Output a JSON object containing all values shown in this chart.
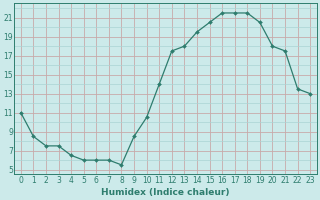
{
  "x": [
    0,
    1,
    2,
    3,
    4,
    5,
    6,
    7,
    8,
    9,
    10,
    11,
    12,
    13,
    14,
    15,
    16,
    17,
    18,
    19,
    20,
    21,
    22,
    23
  ],
  "y": [
    11,
    8.5,
    7.5,
    7.5,
    6.5,
    6,
    6,
    6,
    5.5,
    8.5,
    10.5,
    14,
    17.5,
    18,
    19.5,
    20.5,
    21.5,
    21.5,
    21.5,
    20.5,
    18,
    17.5,
    13.5,
    13
  ],
  "line_color": "#2e7d6e",
  "marker": "D",
  "marker_size": 2.0,
  "bg_color": "#cceaea",
  "grid_minor_color": "#aad4d4",
  "grid_major_color": "#c8aaaa",
  "xlabel": "Humidex (Indice chaleur)",
  "ylim": [
    4.5,
    22.5
  ],
  "xlim": [
    -0.5,
    23.5
  ],
  "yticks": [
    5,
    7,
    9,
    11,
    13,
    15,
    17,
    19,
    21
  ],
  "xticks": [
    0,
    1,
    2,
    3,
    4,
    5,
    6,
    7,
    8,
    9,
    10,
    11,
    12,
    13,
    14,
    15,
    16,
    17,
    18,
    19,
    20,
    21,
    22,
    23
  ],
  "xtick_labels": [
    "0",
    "1",
    "2",
    "3",
    "4",
    "5",
    "6",
    "7",
    "8",
    "9",
    "10",
    "11",
    "12",
    "13",
    "14",
    "15",
    "16",
    "17",
    "18",
    "19",
    "20",
    "21",
    "22",
    "23"
  ],
  "tick_fontsize": 5.5,
  "xlabel_fontsize": 6.5
}
